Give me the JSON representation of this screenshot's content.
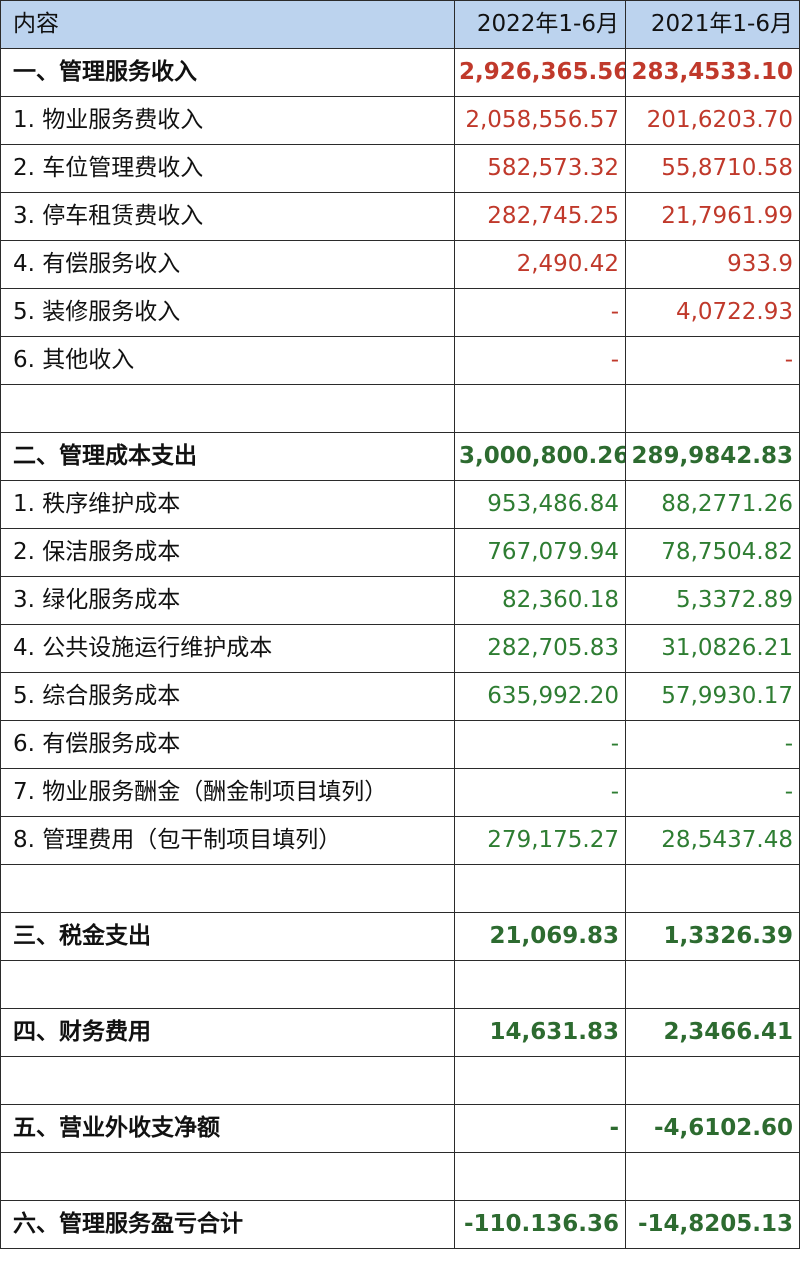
{
  "header": {
    "label": "内容",
    "col_2022": "2022年1-6月",
    "col_2021": "2021年1-6月"
  },
  "colors": {
    "header_bg": "#bcd3ee",
    "income": "#c0392b",
    "expense": "#2e7d32"
  },
  "rows": [
    {
      "label": "一、管理服务收入",
      "v2022": "2,926,365.56",
      "v2021": "283,4533.10",
      "bold": true,
      "tone": "red"
    },
    {
      "label": "1. 物业服务费收入",
      "v2022": "2,058,556.57",
      "v2021": "201,6203.70",
      "bold": false,
      "tone": "red"
    },
    {
      "label": "2. 车位管理费收入",
      "v2022": "582,573.32",
      "v2021": "55,8710.58",
      "bold": false,
      "tone": "red"
    },
    {
      "label": "3. 停车租赁费收入",
      "v2022": "282,745.25",
      "v2021": "21,7961.99",
      "bold": false,
      "tone": "red"
    },
    {
      "label": "4. 有偿服务收入",
      "v2022": "2,490.42",
      "v2021": "933.9",
      "bold": false,
      "tone": "red"
    },
    {
      "label": "5. 装修服务收入",
      "v2022": "-",
      "v2021": "4,0722.93",
      "bold": false,
      "tone": "red"
    },
    {
      "label": "6. 其他收入",
      "v2022": "-",
      "v2021": "-",
      "bold": false,
      "tone": "red"
    },
    {
      "label": "",
      "v2022": "",
      "v2021": "",
      "bold": false,
      "tone": "none"
    },
    {
      "label": "二、管理成本支出",
      "v2022": "3,000,800.26",
      "v2021": "289,9842.83",
      "bold": true,
      "tone": "green"
    },
    {
      "label": "1. 秩序维护成本",
      "v2022": "953,486.84",
      "v2021": "88,2771.26",
      "bold": false,
      "tone": "green"
    },
    {
      "label": "2. 保洁服务成本",
      "v2022": "767,079.94",
      "v2021": "78,7504.82",
      "bold": false,
      "tone": "green"
    },
    {
      "label": "3. 绿化服务成本",
      "v2022": "82,360.18",
      "v2021": "5,3372.89",
      "bold": false,
      "tone": "green"
    },
    {
      "label": "4. 公共设施运行维护成本",
      "v2022": "282,705.83",
      "v2021": "31,0826.21",
      "bold": false,
      "tone": "green"
    },
    {
      "label": "5. 综合服务成本",
      "v2022": "635,992.20",
      "v2021": "57,9930.17",
      "bold": false,
      "tone": "green"
    },
    {
      "label": "6. 有偿服务成本",
      "v2022": "-",
      "v2021": "-",
      "bold": false,
      "tone": "green"
    },
    {
      "label": "7. 物业服务酬金（酬金制项目填列）",
      "v2022": "-",
      "v2021": "-",
      "bold": false,
      "tone": "green"
    },
    {
      "label": "8. 管理费用（包干制项目填列）",
      "v2022": "279,175.27",
      "v2021": "28,5437.48",
      "bold": false,
      "tone": "green"
    },
    {
      "label": "",
      "v2022": "",
      "v2021": "",
      "bold": false,
      "tone": "none"
    },
    {
      "label": "三、税金支出",
      "v2022": "21,069.83",
      "v2021": "1,3326.39",
      "bold": true,
      "tone": "green"
    },
    {
      "label": "",
      "v2022": "",
      "v2021": "",
      "bold": false,
      "tone": "none"
    },
    {
      "label": "四、财务费用",
      "v2022": "14,631.83",
      "v2021": "2,3466.41",
      "bold": true,
      "tone": "green"
    },
    {
      "label": "",
      "v2022": "",
      "v2021": "",
      "bold": false,
      "tone": "none"
    },
    {
      "label": "五、营业外收支净额",
      "v2022": "-",
      "v2021": "-4,6102.60",
      "bold": true,
      "tone": "green"
    },
    {
      "label": "",
      "v2022": "",
      "v2021": "",
      "bold": false,
      "tone": "none"
    },
    {
      "label": "六、管理服务盈亏合计",
      "v2022": "-110.136.36",
      "v2021": "-14,8205.13",
      "bold": true,
      "tone": "green"
    }
  ]
}
